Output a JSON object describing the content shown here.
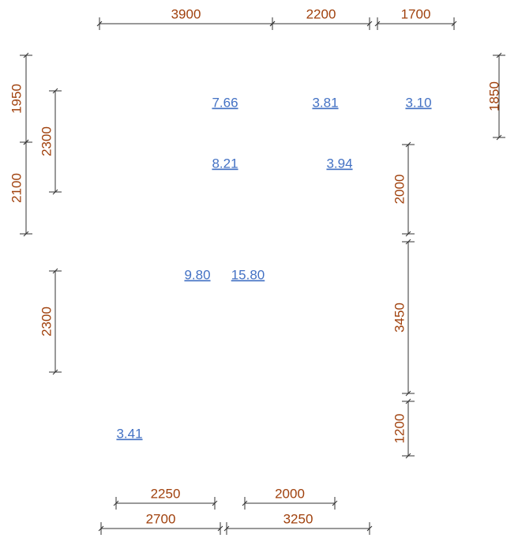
{
  "dimensions": {
    "top": [
      "3900",
      "2200",
      "1700"
    ],
    "left_outer": [
      "1950",
      "2100"
    ],
    "left_inner": [
      "2300",
      "2300"
    ],
    "right_outer": [
      "1850"
    ],
    "right_inner": [
      "2000",
      "3450",
      "1200"
    ],
    "bottom_inner": [
      "2250",
      "2000"
    ],
    "bottom_outer": [
      "2700",
      "3250"
    ]
  },
  "areas": [
    "7.66",
    "3.81",
    "3.10",
    "8.21",
    "3.94",
    "9.80",
    "15.80",
    "3.41"
  ]
}
